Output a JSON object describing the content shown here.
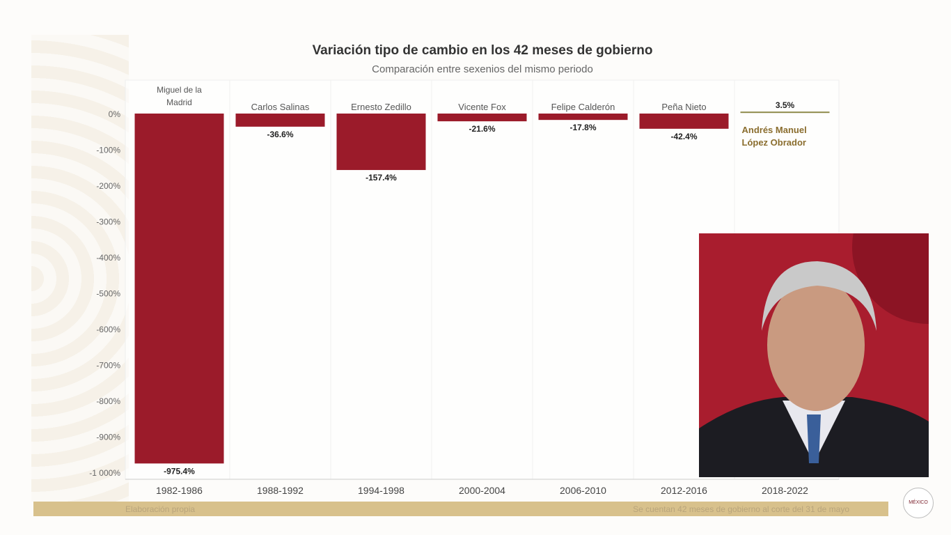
{
  "chart_data": {
    "type": "bar",
    "title": "Variación tipo de cambio en los 42 meses de gobierno",
    "subtitle": "Comparación entre sexenios del mismo periodo",
    "categories": [
      "1982-1986",
      "1988-1992",
      "1994-1998",
      "2000-2004",
      "2006-2010",
      "2012-2016",
      "2018-2022"
    ],
    "presidents": [
      "Miguel de la Madrid",
      "Carlos Salinas",
      "Ernesto Zedillo",
      "Vicente Fox",
      "Felipe Calderón",
      "Peña Nieto",
      "Andrés Manuel López Obrador"
    ],
    "values": [
      -975.4,
      -36.6,
      -157.4,
      -21.6,
      -17.8,
      -42.4,
      3.5
    ],
    "value_labels": [
      "-975.4%",
      "-36.6%",
      "-157.4%",
      "-21.6%",
      "-17.8%",
      "-42.4%",
      "3.5%"
    ],
    "yticks": [
      "0%",
      "-100%",
      "-200%",
      "-300%",
      "-400%",
      "-500%",
      "-600%",
      "-700%",
      "-800%",
      "-900%",
      "-1 000%"
    ],
    "ylim": [
      -1000,
      0
    ],
    "colors": {
      "negative": "#9b1b2a",
      "positive": "#8e8a4a",
      "highlight_label": "#8a6d2e"
    }
  },
  "footer": {
    "source": "Elaboración propia",
    "note": "Se cuentan 42 meses de gobierno al corte del 31 de mayo"
  },
  "logo_text": "MÉXICO"
}
